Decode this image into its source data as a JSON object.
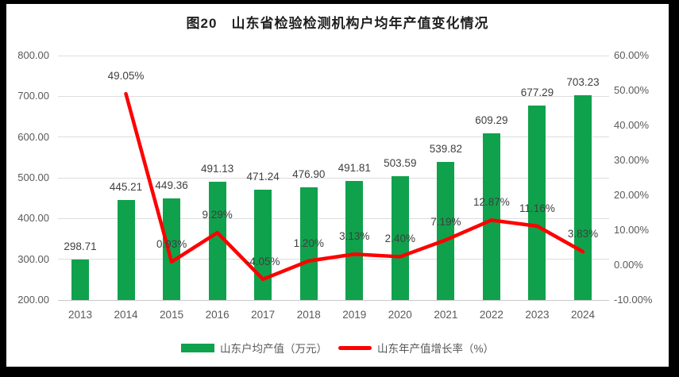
{
  "title": "图20　山东省检验检测机构户均年产值变化情况",
  "colors": {
    "bar": "#10a14c",
    "line": "#fe0000",
    "gridline": "#dddddd",
    "axis_text": "#595959",
    "data_label_text": "#3f3f3f",
    "title_text": "#1f1f1f",
    "frame": "#000000",
    "background": "#ffffff"
  },
  "chart_data": {
    "type": "bar",
    "title": "图20　山东省检验检测机构户均年产值变化情况",
    "categories": [
      "2013",
      "2014",
      "2015",
      "2016",
      "2017",
      "2018",
      "2019",
      "2020",
      "2021",
      "2022",
      "2023",
      "2024"
    ],
    "series": [
      {
        "name": "山东户均产值（万元）",
        "type": "bar",
        "color": "#10a14c",
        "values": [
          298.71,
          445.21,
          449.36,
          491.13,
          471.24,
          476.9,
          491.81,
          503.59,
          539.82,
          609.29,
          677.29,
          703.23
        ],
        "labels": [
          "298.71",
          "445.21",
          "449.36",
          "491.13",
          "471.24",
          "476.90",
          "491.81",
          "503.59",
          "539.82",
          "609.29",
          "677.29",
          "703.23"
        ]
      },
      {
        "name": "山东年产值增长率（%）",
        "type": "line",
        "color": "#fe0000",
        "values": [
          null,
          49.05,
          0.93,
          9.29,
          -4.05,
          1.2,
          3.13,
          2.4,
          7.19,
          12.87,
          11.16,
          3.83
        ],
        "labels": [
          null,
          "49.05%",
          "0.93%",
          "9.29%",
          "-4.05%",
          "1.20%",
          "3.13%",
          "2.40%",
          "7.19%",
          "12.87%",
          "11.16%",
          "3.83%"
        ]
      }
    ],
    "left_axis": {
      "min": 200,
      "max": 800,
      "ticks": [
        "800.00",
        "700.00",
        "600.00",
        "500.00",
        "400.00",
        "300.00",
        "200.00"
      ]
    },
    "right_axis": {
      "min": -10,
      "max": 60,
      "ticks": [
        "60.00%",
        "50.00%",
        "40.00%",
        "30.00%",
        "20.00%",
        "10.00%",
        "0.00%",
        "-10.00%"
      ]
    },
    "legend": [
      "山东户均产值（万元）",
      "山东年产值增长率（%）"
    ],
    "legend_position": "bottom",
    "grid": true
  }
}
